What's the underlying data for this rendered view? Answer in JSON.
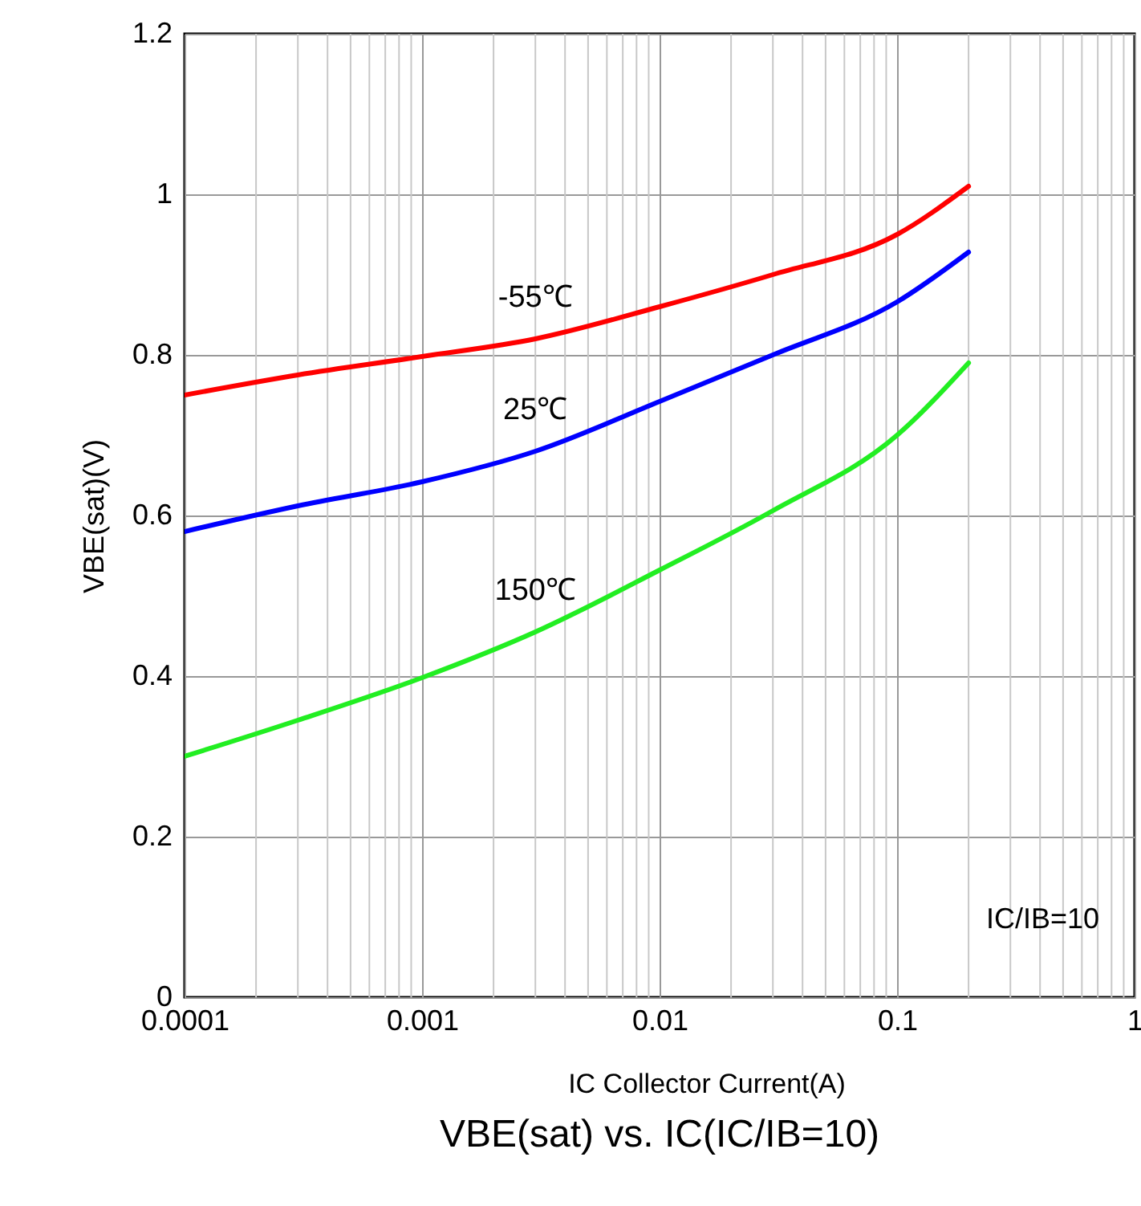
{
  "chart_data": {
    "type": "line",
    "title": "VBE(sat) vs. IC(IC/IB=10)",
    "xlabel": "IC Collector Current(A)",
    "ylabel": "VBE(sat)(V)",
    "x": [
      0.0001,
      0.0003,
      0.001,
      0.003,
      0.01,
      0.03,
      0.1,
      0.2
    ],
    "series": [
      {
        "name": "-55℃",
        "color": "#ff0000",
        "values": [
          0.75,
          0.775,
          0.798,
          0.82,
          0.86,
          0.9,
          0.95,
          1.01
        ]
      },
      {
        "name": "25℃",
        "color": "#0000ff",
        "values": [
          0.58,
          0.612,
          0.642,
          0.68,
          0.742,
          0.8,
          0.866,
          0.928
        ]
      },
      {
        "name": "150℃",
        "color": "#22ee22",
        "values": [
          0.3,
          0.345,
          0.398,
          0.455,
          0.532,
          0.606,
          0.7,
          0.79
        ]
      }
    ],
    "annotations": [
      "IC/IB=10"
    ],
    "log": "x",
    "grid": true,
    "legend": false,
    "marker": "none",
    "line_style": "solid",
    "xlim": [
      0.0001,
      1
    ],
    "xticks": [
      0.0001,
      0.001,
      0.01,
      0.1,
      1
    ],
    "ylim": [
      0,
      1.2
    ],
    "yticks": [
      0,
      0.2,
      0.4,
      0.6,
      0.8,
      1,
      1.2
    ]
  }
}
